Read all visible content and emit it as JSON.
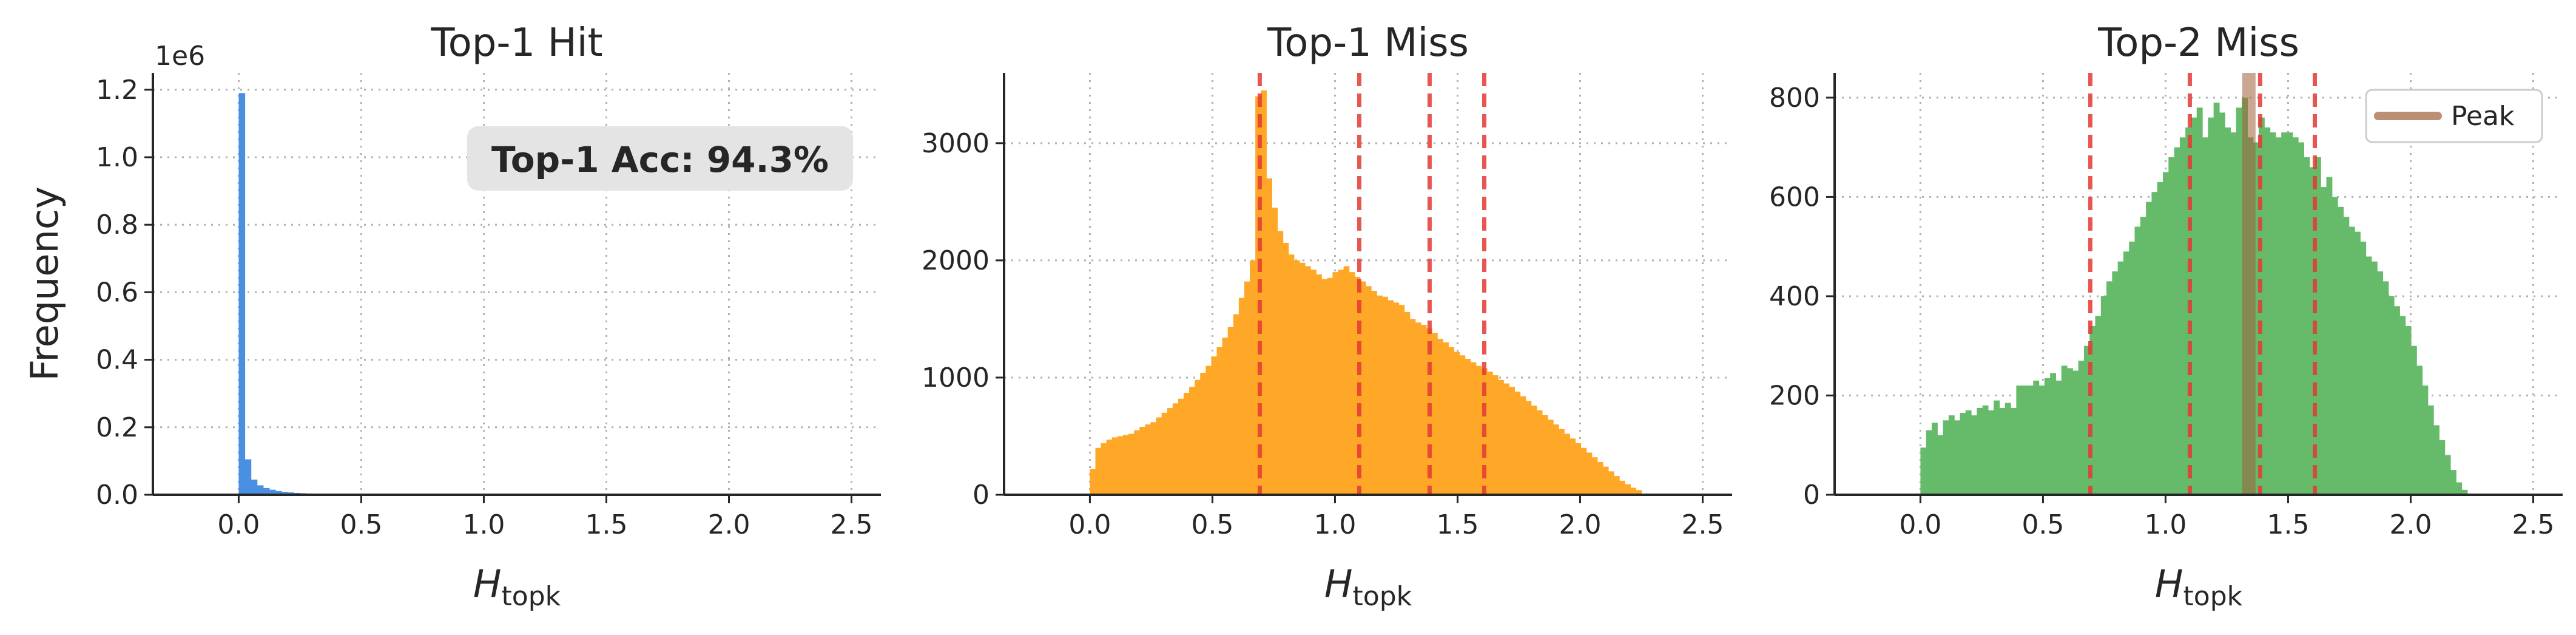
{
  "colors": {
    "hit": "#4a90e2",
    "miss1": "#ffa726",
    "miss2": "#66bb6a",
    "vline": "#e53935",
    "peak": "#a0603a"
  },
  "chart_data": [
    {
      "type": "bar",
      "title": "Top-1 Hit",
      "xlabel_main": "H",
      "xlabel_sub": "topk",
      "ylabel": "Frequency",
      "y_offset_text": "1e6",
      "xlim": [
        -0.35,
        2.62
      ],
      "ylim": [
        0,
        1250000
      ],
      "xticks": [
        0.0,
        0.5,
        1.0,
        1.5,
        2.0,
        2.5
      ],
      "xtick_labels": [
        "0.0",
        "0.5",
        "1.0",
        "1.5",
        "2.0",
        "2.5"
      ],
      "yticks": [
        0,
        200000,
        400000,
        600000,
        800000,
        1000000,
        1200000
      ],
      "ytick_labels": [
        "0.0",
        "0.2",
        "0.4",
        "0.6",
        "0.8",
        "1.0",
        "1.2"
      ],
      "grid": true,
      "annotation": "Top-1 Acc: 94.3%",
      "bin_start": 0.0,
      "bin_width": 0.025,
      "values": [
        1190000,
        105000,
        45000,
        28000,
        20000,
        15000,
        11000,
        8500,
        7000,
        5500,
        4500,
        3800,
        3200,
        2700,
        2300,
        2000,
        1700,
        1400,
        1200,
        1000,
        850,
        700,
        600,
        500,
        420,
        350,
        300,
        250,
        200,
        170,
        140,
        120
      ],
      "color_key": "hit"
    },
    {
      "type": "bar",
      "title": "Top-1 Miss",
      "xlabel_main": "H",
      "xlabel_sub": "topk",
      "ylabel": "",
      "xlim": [
        -0.35,
        2.62
      ],
      "ylim": [
        0,
        3600
      ],
      "xticks": [
        0.0,
        0.5,
        1.0,
        1.5,
        2.0,
        2.5
      ],
      "xtick_labels": [
        "0.0",
        "0.5",
        "1.0",
        "1.5",
        "2.0",
        "2.5"
      ],
      "yticks": [
        0,
        1000,
        2000,
        3000
      ],
      "ytick_labels": [
        "0",
        "1000",
        "2000",
        "3000"
      ],
      "grid": true,
      "vlines": [
        0.693,
        1.099,
        1.386,
        1.609
      ],
      "bin_start": 0.0,
      "bin_width": 0.0225,
      "values": [
        220,
        400,
        440,
        470,
        490,
        500,
        510,
        520,
        550,
        580,
        600,
        620,
        660,
        700,
        740,
        780,
        820,
        870,
        920,
        980,
        1040,
        1100,
        1180,
        1260,
        1340,
        1430,
        1540,
        1680,
        1820,
        2000,
        3400,
        3450,
        2700,
        2450,
        2250,
        2150,
        2050,
        2000,
        1980,
        1950,
        1920,
        1880,
        1840,
        1850,
        1900,
        1920,
        1950,
        1900,
        1860,
        1820,
        1780,
        1740,
        1700,
        1690,
        1660,
        1640,
        1620,
        1560,
        1500,
        1470,
        1450,
        1420,
        1380,
        1330,
        1300,
        1260,
        1220,
        1190,
        1160,
        1130,
        1100,
        1080,
        1050,
        1020,
        980,
        950,
        920,
        880,
        840,
        800,
        760,
        720,
        680,
        640,
        600,
        560,
        520,
        480,
        440,
        400,
        360,
        320,
        280,
        240,
        200,
        160,
        120,
        90,
        60,
        40
      ],
      "color_key": "miss1"
    },
    {
      "type": "bar",
      "title": "Top-2 Miss",
      "xlabel_main": "H",
      "xlabel_sub": "topk",
      "ylabel": "",
      "xlim": [
        -0.35,
        2.62
      ],
      "ylim": [
        0,
        850
      ],
      "xticks": [
        0.0,
        0.5,
        1.0,
        1.5,
        2.0,
        2.5
      ],
      "xtick_labels": [
        "0.0",
        "0.5",
        "1.0",
        "1.5",
        "2.0",
        "2.5"
      ],
      "yticks": [
        0,
        200,
        400,
        600,
        800
      ],
      "ytick_labels": [
        "0",
        "200",
        "400",
        "600",
        "800"
      ],
      "grid": true,
      "vlines": [
        0.693,
        1.099,
        1.386,
        1.609
      ],
      "peak": 1.34,
      "legend": "Peak",
      "legend_position": "top-right",
      "bin_start": 0.0,
      "bin_width": 0.023,
      "values": [
        95,
        130,
        145,
        120,
        150,
        160,
        150,
        165,
        170,
        160,
        175,
        180,
        170,
        190,
        175,
        185,
        175,
        220,
        220,
        220,
        230,
        220,
        235,
        245,
        230,
        260,
        255,
        250,
        270,
        300,
        340,
        360,
        400,
        430,
        450,
        470,
        490,
        510,
        540,
        560,
        590,
        610,
        630,
        650,
        680,
        700,
        720,
        740,
        760,
        780,
        720,
        760,
        790,
        770,
        740,
        730,
        780,
        800,
        720,
        710,
        760,
        740,
        730,
        720,
        730,
        730,
        720,
        710,
        680,
        660,
        680,
        620,
        640,
        600,
        580,
        560,
        540,
        530,
        510,
        480,
        470,
        450,
        430,
        400,
        380,
        360,
        340,
        300,
        260,
        220,
        180,
        140,
        110,
        80,
        50,
        25,
        10
      ],
      "color_key": "miss2"
    }
  ]
}
